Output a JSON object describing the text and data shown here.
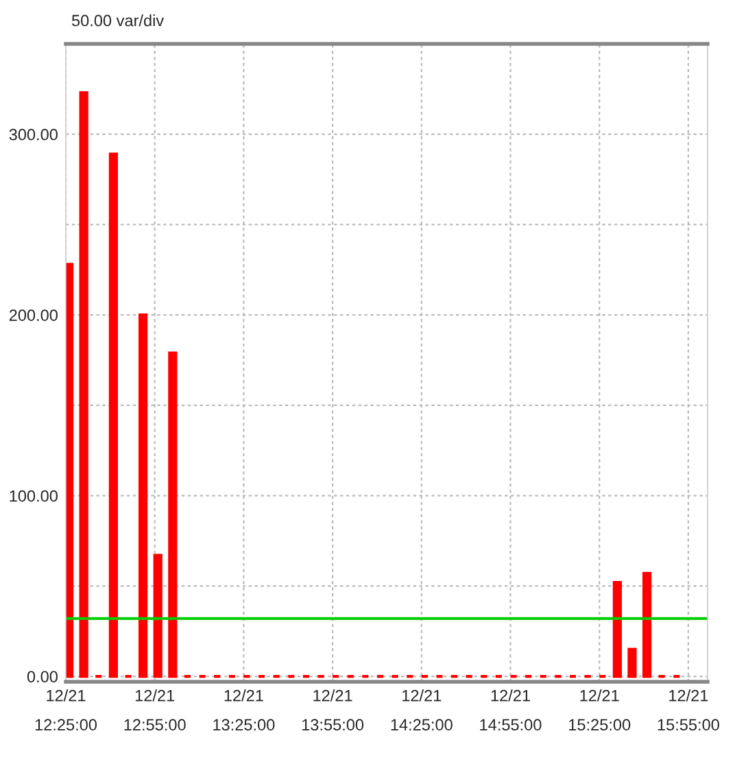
{
  "chart_data": {
    "type": "bar",
    "title": "50.00 var/div",
    "categories": [
      "12/21\n12:25:00",
      null,
      null,
      null,
      null,
      null,
      "12/21\n12:55:00",
      null,
      null,
      null,
      null,
      null,
      "12/21\n13:25:00",
      null,
      null,
      null,
      null,
      null,
      "12/21\n13:55:00",
      null,
      null,
      null,
      null,
      null,
      "12/21\n14:25:00",
      null,
      null,
      null,
      null,
      null,
      "12/21\n14:55:00",
      null,
      null,
      null,
      null,
      null,
      "12/21\n15:25:00",
      null,
      null,
      null,
      null,
      null,
      "12/21\n15:55:00"
    ],
    "series": [
      {
        "color": "#ff0000",
        "values": [
          228,
          323,
          0,
          289,
          0,
          200,
          67,
          179,
          0,
          0,
          0,
          0,
          0,
          0,
          0,
          0,
          0,
          0,
          0,
          0,
          0,
          0,
          0,
          0,
          0,
          0,
          0,
          0,
          0,
          0,
          0,
          0,
          0,
          0,
          0,
          0,
          0,
          52,
          15,
          57,
          0,
          0,
          null
        ]
      }
    ],
    "ylim": [
      -3,
      350
    ],
    "yticks": [
      {
        "value": 0,
        "label": "0.00"
      },
      {
        "value": 50,
        "label": null
      },
      {
        "value": 100,
        "label": "100.00"
      },
      {
        "value": 150,
        "label": null
      },
      {
        "value": 200,
        "label": "200.00"
      },
      {
        "value": 250,
        "label": null
      },
      {
        "value": 300,
        "label": "300.00"
      }
    ],
    "ref_lines": [
      {
        "axis": "y",
        "value": 32,
        "color": "#00cc00"
      }
    ],
    "grid": true
  }
}
